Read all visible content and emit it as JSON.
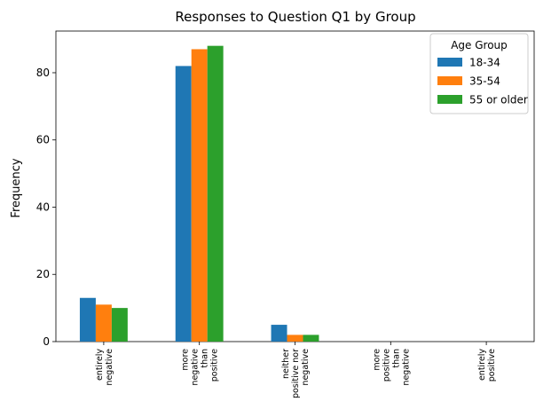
{
  "chart_data": {
    "type": "bar",
    "title": "Responses to Question Q1 by Group",
    "xlabel": "",
    "ylabel": "Frequency",
    "ylim": [
      0,
      92.4
    ],
    "yticks": [
      0,
      20,
      40,
      60,
      80
    ],
    "grid": false,
    "categories": [
      [
        "entirely",
        "negative"
      ],
      [
        "more",
        "negative",
        "than",
        "positive"
      ],
      [
        "neither",
        "positive nor",
        "negative"
      ],
      [
        "more",
        "positive",
        "than",
        "negative"
      ],
      [
        "entirely",
        "positive"
      ]
    ],
    "series": [
      {
        "name": "18-34",
        "color": "#1f77b4",
        "values": [
          13,
          82,
          5,
          0,
          0
        ]
      },
      {
        "name": "35-54",
        "color": "#ff7f0e",
        "values": [
          11,
          87,
          2,
          0,
          0
        ]
      },
      {
        "name": "55 or older",
        "color": "#2ca02c",
        "values": [
          10,
          88,
          2,
          0,
          0
        ]
      }
    ],
    "legend": {
      "title": "Age Group",
      "placement": "top-right"
    }
  }
}
